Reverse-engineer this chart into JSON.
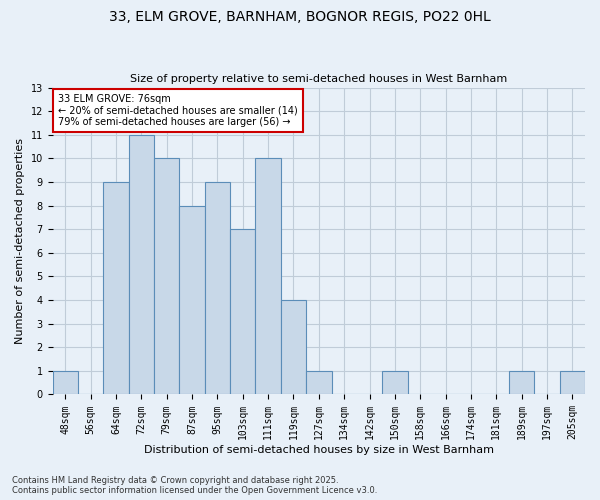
{
  "title_line1": "33, ELM GROVE, BARNHAM, BOGNOR REGIS, PO22 0HL",
  "title_line2": "Size of property relative to semi-detached houses in West Barnham",
  "xlabel": "Distribution of semi-detached houses by size in West Barnham",
  "ylabel": "Number of semi-detached properties",
  "footnote": "Contains HM Land Registry data © Crown copyright and database right 2025.\nContains public sector information licensed under the Open Government Licence v3.0.",
  "categories": [
    "48sqm",
    "56sqm",
    "64sqm",
    "72sqm",
    "79sqm",
    "87sqm",
    "95sqm",
    "103sqm",
    "111sqm",
    "119sqm",
    "127sqm",
    "134sqm",
    "142sqm",
    "150sqm",
    "158sqm",
    "166sqm",
    "174sqm",
    "181sqm",
    "189sqm",
    "197sqm",
    "205sqm"
  ],
  "values": [
    1,
    0,
    9,
    11,
    10,
    8,
    9,
    7,
    10,
    4,
    1,
    0,
    0,
    1,
    0,
    0,
    0,
    0,
    1,
    0,
    1
  ],
  "bar_color": "#c8d8e8",
  "bar_edge_color": "#5b8db8",
  "annotation_text": "33 ELM GROVE: 76sqm\n← 20% of semi-detached houses are smaller (14)\n79% of semi-detached houses are larger (56) →",
  "annotation_box_color": "#ffffff",
  "annotation_box_edge": "#cc0000",
  "ylim": [
    0,
    13
  ],
  "yticks": [
    0,
    1,
    2,
    3,
    4,
    5,
    6,
    7,
    8,
    9,
    10,
    11,
    12,
    13
  ],
  "background_color": "#e8f0f8",
  "plot_bg_color": "#e8f0f8",
  "grid_color": "#c0ccd8",
  "title_fontsize": 10,
  "subtitle_fontsize": 8,
  "footnote_fontsize": 6,
  "ylabel_fontsize": 8,
  "xlabel_fontsize": 8,
  "tick_fontsize": 7
}
